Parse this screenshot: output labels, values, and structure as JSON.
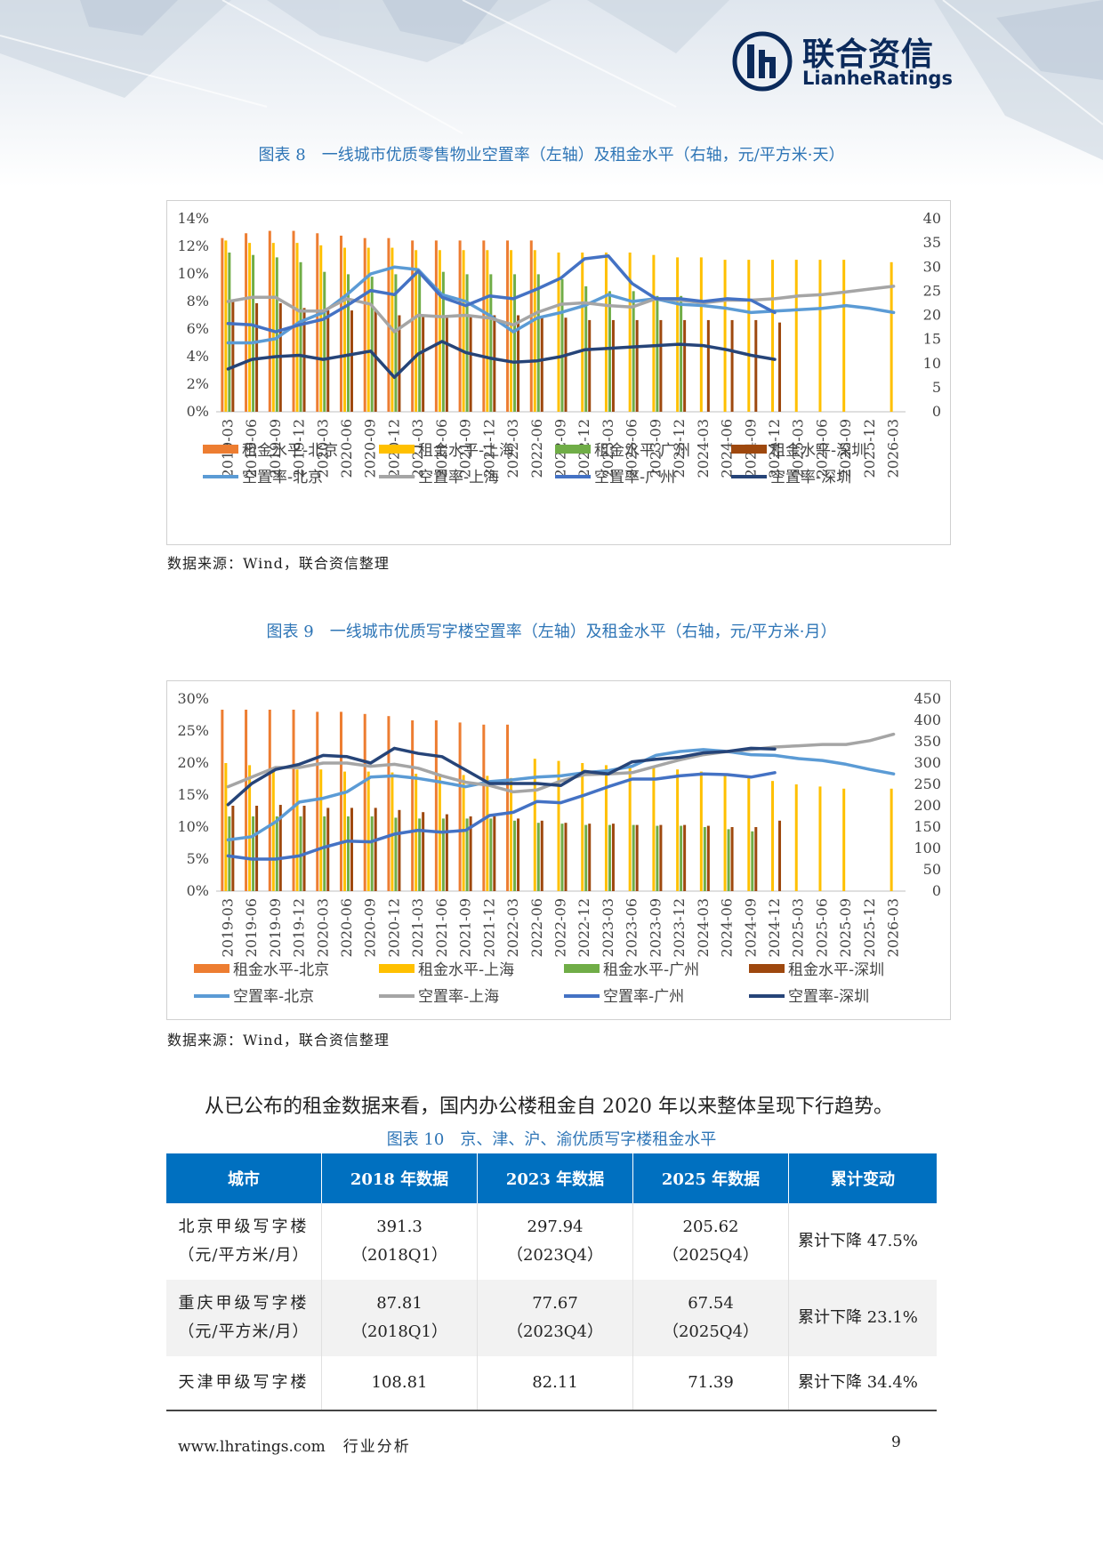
{
  "header": {
    "brand_cn": "联合资信",
    "brand_en": "LianheRatings",
    "brand_color": "#0b2a5b"
  },
  "figure8": {
    "title": "图表 8　一线城市优质零售物业空置率（左轴）及租金水平（右轴，元/平方米·天）",
    "source": "数据来源：Wind，联合资信整理"
  },
  "figure9": {
    "title": "图表 9　一线城市优质写字楼空置率（左轴）及租金水平（右轴，元/平方米·月）",
    "source": "数据来源：Wind，联合资信整理"
  },
  "chart_data": [
    {
      "type": "bar+line",
      "categories": [
        "2019-03",
        "2019-06",
        "2019-09",
        "2019-12",
        "2020-03",
        "2020-06",
        "2020-09",
        "2020-12",
        "2021-03",
        "2021-06",
        "2021-09",
        "2021-12",
        "2022-03",
        "2022-06",
        "2022-09",
        "2022-12",
        "2023-03",
        "2023-06",
        "2023-09",
        "2023-12",
        "2024-03",
        "2024-06",
        "2024-09",
        "2024-12",
        "2025-03",
        "2025-06",
        "2025-09",
        "2025-12",
        "2026-03"
      ],
      "y_left_ticks": [
        "0%",
        "2%",
        "4%",
        "6%",
        "8%",
        "10%",
        "12%",
        "14%"
      ],
      "y_left_range": [
        0,
        14
      ],
      "y_right_ticks": [
        "0",
        "5",
        "10",
        "15",
        "20",
        "25",
        "30",
        "35",
        "40"
      ],
      "y_right_range": [
        0,
        40
      ],
      "legend_position": "bottom",
      "bar_series": [
        {
          "name": "租金水平-北京",
          "color": "#ed7d31",
          "values": [
            36,
            37,
            37.5,
            37.5,
            37,
            36.5,
            36,
            36,
            35.5,
            35.5,
            35.5,
            35.5,
            35.5,
            35.5,
            null,
            null,
            null,
            null,
            null,
            null,
            null,
            null,
            null,
            null,
            null,
            null,
            null,
            null,
            null
          ]
        },
        {
          "name": "租金水平-上海",
          "color": "#ffc000",
          "values": [
            35.5,
            35,
            35,
            35,
            34.5,
            34,
            34,
            34,
            33.5,
            33.5,
            33.5,
            33.5,
            33.5,
            33.5,
            33,
            33,
            33,
            33,
            32.5,
            32,
            32,
            31.5,
            31.5,
            31.5,
            31.5,
            31.5,
            31.5,
            null,
            31
          ]
        },
        {
          "name": "租金水平-广州",
          "color": "#70ad47",
          "values": [
            33,
            32.5,
            32,
            31,
            29,
            28.5,
            28,
            28.5,
            29,
            29,
            28.5,
            28.5,
            28.5,
            28.5,
            27.5,
            26,
            25,
            25,
            24,
            24,
            null,
            null,
            null,
            null,
            null,
            null,
            null,
            null,
            null
          ]
        },
        {
          "name": "租金水平-深圳",
          "color": "#9e480e",
          "values": [
            23,
            22.5,
            22.5,
            21.5,
            21,
            21,
            21,
            20,
            20,
            20,
            20,
            20,
            20,
            19.5,
            19.5,
            19,
            19,
            19,
            19,
            19,
            19,
            19,
            19,
            18.5,
            null,
            null,
            null,
            null,
            null
          ]
        }
      ],
      "line_series": [
        {
          "name": "空置率-北京",
          "color": "#5b9bd5",
          "values": [
            5,
            5,
            5.3,
            6.5,
            7.2,
            8.5,
            10,
            10.5,
            10.3,
            8.5,
            8,
            7,
            5.8,
            6.8,
            7.2,
            7.7,
            8.5,
            8,
            8.2,
            7.8,
            7.7,
            7.5,
            7.2,
            7.3,
            7.4,
            7.5,
            7.7,
            7.5,
            7.2
          ]
        },
        {
          "name": "空置率-上海",
          "color": "#a5a5a5",
          "values": [
            8,
            8.3,
            8.3,
            7.3,
            7.3,
            8.2,
            7.8,
            5.8,
            7,
            6.9,
            7,
            6.8,
            6.3,
            7.2,
            7.8,
            7.9,
            7.7,
            7.6,
            8.2,
            8.1,
            7.9,
            8.1,
            8.1,
            8.2,
            8.4,
            8.5,
            8.7,
            8.9,
            9.1
          ]
        },
        {
          "name": "空置率-广州",
          "color": "#4472c4",
          "values": [
            6.4,
            6.3,
            5.8,
            6.3,
            6.7,
            7.7,
            8.8,
            8.5,
            10.2,
            8.3,
            7.7,
            8.4,
            8.2,
            8.9,
            9.7,
            11.1,
            11.3,
            9.3,
            8.2,
            8.2,
            8,
            8.2,
            8.1,
            7.2,
            null,
            null,
            null,
            null,
            null
          ]
        },
        {
          "name": "空置率-深圳",
          "color": "#264478",
          "values": [
            3.1,
            3.8,
            4,
            4.1,
            3.8,
            4.1,
            4.4,
            2.5,
            4.2,
            5.1,
            4.3,
            3.9,
            3.6,
            3.7,
            4,
            4.5,
            4.6,
            4.7,
            4.8,
            4.9,
            4.8,
            4.5,
            4.1,
            3.8,
            null,
            null,
            null,
            null,
            null
          ]
        }
      ]
    },
    {
      "type": "bar+line",
      "categories": [
        "2019-03",
        "2019-06",
        "2019-09",
        "2019-12",
        "2020-03",
        "2020-06",
        "2020-09",
        "2020-12",
        "2021-03",
        "2021-06",
        "2021-09",
        "2021-12",
        "2022-03",
        "2022-06",
        "2022-09",
        "2022-12",
        "2023-03",
        "2023-06",
        "2023-09",
        "2023-12",
        "2024-03",
        "2024-06",
        "2024-09",
        "2024-12",
        "2025-03",
        "2025-06",
        "2025-09",
        "2025-12",
        "2026-03"
      ],
      "y_left_ticks": [
        "0%",
        "5%",
        "10%",
        "15%",
        "20%",
        "25%",
        "30%"
      ],
      "y_left_range": [
        0,
        30
      ],
      "y_right_ticks": [
        "0",
        "50",
        "100",
        "150",
        "200",
        "250",
        "300",
        "350",
        "400",
        "450"
      ],
      "y_right_range": [
        0,
        450
      ],
      "legend_position": "bottom",
      "bar_series": [
        {
          "name": "租金水平-北京",
          "color": "#ed7d31",
          "values": [
            425,
            425,
            425,
            425,
            420,
            420,
            415,
            410,
            400,
            400,
            395,
            390,
            390,
            null,
            null,
            null,
            null,
            null,
            null,
            null,
            null,
            null,
            null,
            null,
            null,
            null,
            null,
            null,
            null
          ]
        },
        {
          "name": "租金水平-上海",
          "color": "#ffc000",
          "values": [
            300,
            295,
            290,
            285,
            285,
            280,
            280,
            278,
            275,
            275,
            272,
            270,
            265,
            310,
            305,
            300,
            295,
            295,
            290,
            285,
            280,
            275,
            265,
            258,
            250,
            245,
            240,
            null,
            240
          ]
        },
        {
          "name": "租金水平-广州",
          "color": "#70ad47",
          "values": [
            175,
            175,
            175,
            175,
            175,
            175,
            175,
            172,
            170,
            170,
            170,
            170,
            165,
            160,
            158,
            155,
            155,
            155,
            153,
            153,
            150,
            145,
            140,
            null,
            null,
            null,
            null,
            null,
            null
          ]
        },
        {
          "name": "租金水平-深圳",
          "color": "#9e480e",
          "values": [
            200,
            200,
            202,
            200,
            195,
            195,
            195,
            190,
            185,
            180,
            175,
            175,
            170,
            165,
            160,
            158,
            158,
            155,
            155,
            155,
            153,
            150,
            150,
            165,
            null,
            null,
            null,
            null,
            null
          ]
        }
      ],
      "line_series": [
        {
          "name": "空置率-北京",
          "color": "#5b9bd5",
          "values": [
            8,
            8.5,
            10.8,
            13.9,
            14.5,
            15.5,
            17.8,
            18,
            17.6,
            17,
            16.3,
            17.1,
            17.4,
            17.8,
            18,
            18.5,
            18.8,
            19.5,
            21.2,
            21.8,
            22.1,
            21.8,
            21.3,
            21.2,
            20.7,
            20.4,
            19.8,
            19,
            18.3
          ]
        },
        {
          "name": "空置率-上海",
          "color": "#a5a5a5",
          "values": [
            16.3,
            17.8,
            19.3,
            19.3,
            20,
            20,
            19.5,
            19.8,
            19.2,
            18,
            17,
            16.5,
            15.5,
            15.8,
            17.2,
            18.2,
            18.3,
            18.5,
            19.5,
            20.5,
            21.3,
            21.8,
            22.1,
            22.5,
            22.7,
            22.9,
            22.9,
            23.5,
            24.5
          ]
        },
        {
          "name": "空置率-广州",
          "color": "#4472c4",
          "values": [
            5.5,
            5,
            5,
            5.5,
            6.8,
            7.8,
            7.7,
            8.9,
            9.5,
            9.2,
            9.5,
            11.8,
            12.3,
            14,
            13.8,
            15,
            16.3,
            17.5,
            17.5,
            18,
            18.3,
            18.2,
            17.8,
            18.5,
            null,
            null,
            null,
            null,
            null
          ]
        },
        {
          "name": "空置率-深圳",
          "color": "#264478",
          "values": [
            13.5,
            16.8,
            19,
            19.8,
            21.2,
            21,
            20,
            22.3,
            21.5,
            21,
            18.9,
            16.8,
            16.8,
            16.8,
            16.5,
            18.7,
            18.3,
            20.2,
            20.6,
            20.9,
            21.6,
            21.8,
            22.3,
            22.2,
            null,
            null,
            null,
            null,
            null
          ]
        }
      ]
    }
  ],
  "body_text": "从已公布的租金数据来看，国内办公楼租金自 2020 年以来整体呈现下行趋势。",
  "table": {
    "title": "图表 10　京、津、沪、渝优质写字楼租金水平",
    "header_bg": "#0070c0",
    "headers": [
      "城市",
      "2018 年数据",
      "2023 年数据",
      "2025 年数据",
      "累计变动"
    ],
    "rows": [
      {
        "city": "北京甲级写字楼",
        "unit": "（元/平方米/月）",
        "v2018": "391.3",
        "q2018": "（2018Q1）",
        "v2023": "297.94",
        "q2023": "（2023Q4）",
        "v2025": "205.62",
        "q2025": "（2025Q4）",
        "change": "累计下降 47.5%"
      },
      {
        "city": "重庆甲级写字楼",
        "unit": "（元/平方米/月）",
        "v2018": "87.81",
        "q2018": "（2018Q1）",
        "v2023": "77.67",
        "q2023": "（2023Q4）",
        "v2025": "67.54",
        "q2025": "（2025Q4）",
        "change": "累计下降 23.1%"
      },
      {
        "city": "天津甲级写字楼",
        "unit": "",
        "v2018": "108.81",
        "q2018": "",
        "v2023": "82.11",
        "q2023": "",
        "v2025": "71.39",
        "q2025": "",
        "change": "累计下降 34.4%"
      }
    ]
  },
  "footer": {
    "url": "www.lhratings.com",
    "section": "行业分析",
    "page": "9"
  }
}
